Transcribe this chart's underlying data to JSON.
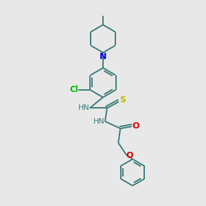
{
  "background_color": "#e8e8e8",
  "bond_color": "#3a7a7a",
  "atoms": {
    "N_pip": {
      "color": "#0000ee",
      "label": "N"
    },
    "N_NH1": {
      "color": "#3a7a7a",
      "label": "HN"
    },
    "N_NH2": {
      "color": "#3a7a7a",
      "label": "HN"
    },
    "O_carbonyl": {
      "color": "#dd0000",
      "label": "O"
    },
    "O_ether": {
      "color": "#dd0000",
      "label": "O"
    },
    "S": {
      "color": "#bbbb00",
      "label": "S"
    },
    "Cl": {
      "color": "#00bb00",
      "label": "Cl"
    }
  },
  "lw": 1.4,
  "figsize": [
    3.0,
    3.0
  ],
  "dpi": 100
}
